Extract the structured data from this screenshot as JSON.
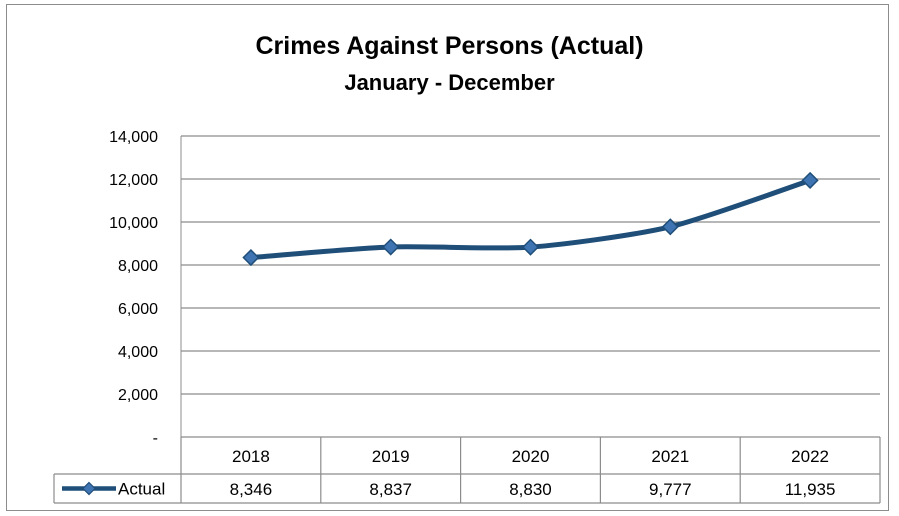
{
  "chart_data": {
    "type": "line",
    "title": "Crimes Against Persons (Actual)",
    "subtitle": "January - December",
    "categories": [
      "2018",
      "2019",
      "2020",
      "2021",
      "2022"
    ],
    "series": [
      {
        "name": "Actual",
        "values": [
          8346,
          8837,
          8830,
          9777,
          11935
        ],
        "labels": [
          "8,346",
          "8,837",
          "8,830",
          "9,777",
          "11,935"
        ],
        "color": "#1f4e79",
        "marker": "diamond"
      }
    ],
    "ylim": [
      0,
      14000
    ],
    "yticks": [
      0,
      2000,
      4000,
      6000,
      8000,
      10000,
      12000,
      14000
    ],
    "ytick_labels": [
      "-",
      "2,000",
      "4,000",
      "6,000",
      "8,000",
      "10,000",
      "12,000",
      "14,000"
    ],
    "grid": true,
    "legend": "data-table-left",
    "data_table": true
  }
}
